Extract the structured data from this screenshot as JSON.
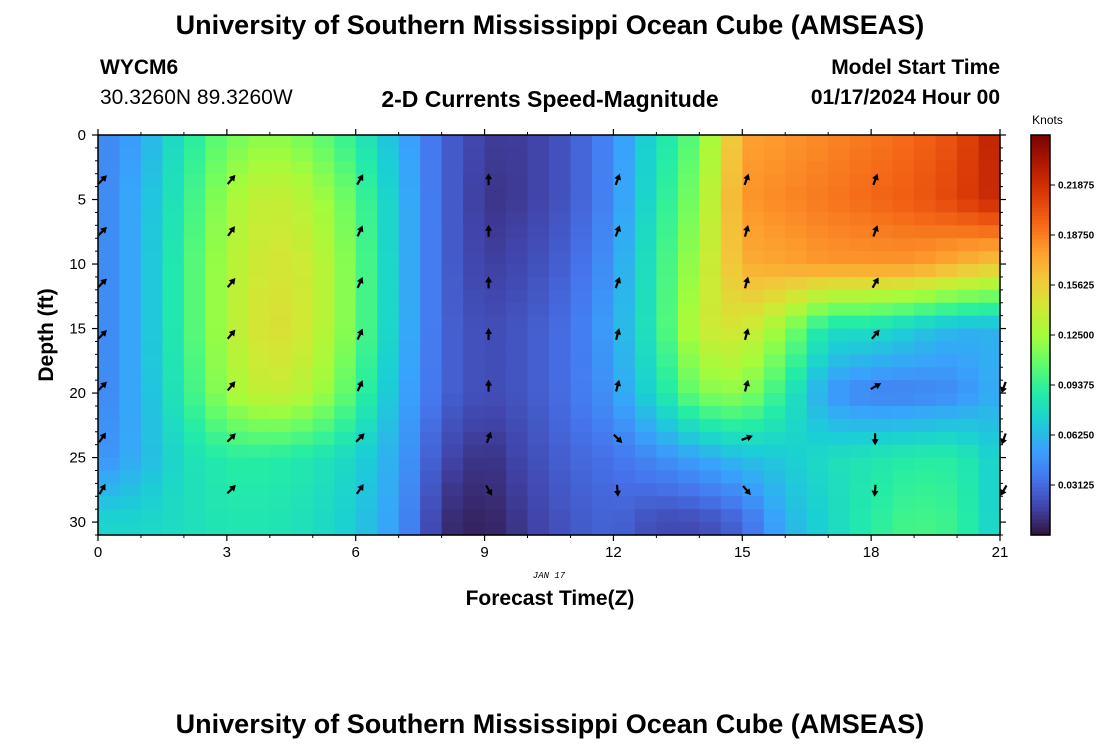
{
  "header": {
    "title": "University of Southern Mississippi Ocean Cube (AMSEAS)",
    "station_id": "WYCM6",
    "station_coords": "30.3260N  89.3260W",
    "chart_title": "2-D Currents Speed-Magnitude",
    "model_start_label": "Model Start Time",
    "model_start_value": "01/17/2024 Hour 00"
  },
  "footer": {
    "title": "University of Southern Mississippi Ocean Cube (AMSEAS)"
  },
  "chart_data": {
    "type": "heatmap",
    "title": "2-D Currents Speed-Magnitude",
    "xlabel": "Forecast Time(Z)",
    "ylabel": "Depth (ft)",
    "date_label": "JAN 17",
    "x_ticks": [
      "0",
      "3",
      "6",
      "9",
      "12",
      "15",
      "18",
      "21"
    ],
    "x_range": [
      0,
      21
    ],
    "y_ticks": [
      "0",
      "5",
      "10",
      "15",
      "20",
      "25",
      "30"
    ],
    "y_range": [
      0,
      31
    ],
    "colorbar": {
      "label": "Knots",
      "range": [
        0,
        0.25
      ],
      "ticks": [
        "0.03125",
        "0.06250",
        "0.09375",
        "0.12500",
        "0.15625",
        "0.18750",
        "0.21875"
      ],
      "tick_values": [
        0.03125,
        0.0625,
        0.09375,
        0.125,
        0.15625,
        0.1875,
        0.21875
      ]
    },
    "hours": [
      0,
      1,
      2,
      3,
      4,
      5,
      6,
      7,
      8,
      9,
      10,
      11,
      12,
      13,
      14,
      15,
      16,
      17,
      18,
      19,
      20,
      21
    ],
    "depths": [
      0,
      5,
      10,
      15,
      20,
      25,
      30
    ],
    "speed_knots": [
      [
        0.04,
        0.055,
        0.085,
        0.11,
        0.12,
        0.11,
        0.09,
        0.06,
        0.03,
        0.015,
        0.015,
        0.025,
        0.045,
        0.08,
        0.11,
        0.175,
        0.18,
        0.185,
        0.19,
        0.195,
        0.205,
        0.23
      ],
      [
        0.04,
        0.06,
        0.09,
        0.125,
        0.14,
        0.13,
        0.105,
        0.065,
        0.03,
        0.012,
        0.015,
        0.025,
        0.045,
        0.085,
        0.12,
        0.18,
        0.185,
        0.19,
        0.195,
        0.2,
        0.21,
        0.225
      ],
      [
        0.04,
        0.06,
        0.095,
        0.13,
        0.145,
        0.14,
        0.11,
        0.065,
        0.03,
        0.015,
        0.02,
        0.03,
        0.05,
        0.09,
        0.13,
        0.17,
        0.175,
        0.18,
        0.18,
        0.18,
        0.17,
        0.16
      ],
      [
        0.04,
        0.06,
        0.095,
        0.13,
        0.15,
        0.14,
        0.11,
        0.065,
        0.03,
        0.02,
        0.025,
        0.035,
        0.055,
        0.09,
        0.14,
        0.145,
        0.12,
        0.08,
        0.08,
        0.07,
        0.06,
        0.06
      ],
      [
        0.04,
        0.06,
        0.09,
        0.125,
        0.14,
        0.13,
        0.1,
        0.06,
        0.03,
        0.02,
        0.025,
        0.035,
        0.05,
        0.08,
        0.115,
        0.12,
        0.09,
        0.05,
        0.04,
        0.04,
        0.045,
        0.06
      ],
      [
        0.045,
        0.06,
        0.08,
        0.09,
        0.09,
        0.085,
        0.075,
        0.055,
        0.02,
        0.01,
        0.02,
        0.03,
        0.035,
        0.045,
        0.055,
        0.065,
        0.07,
        0.08,
        0.085,
        0.09,
        0.09,
        0.07
      ],
      [
        0.075,
        0.075,
        0.08,
        0.085,
        0.085,
        0.08,
        0.07,
        0.05,
        0.01,
        0.005,
        0.015,
        0.025,
        0.03,
        0.02,
        0.02,
        0.03,
        0.06,
        0.075,
        0.09,
        0.1,
        0.095,
        0.07
      ]
    ],
    "arrow_times": [
      0,
      3,
      6,
      9,
      12,
      15,
      18,
      21
    ],
    "arrow_depths": [
      3.5,
      7.5,
      11.5,
      15.5,
      19.5,
      23.5,
      27.5
    ],
    "arrow_directions_deg": [
      [
        45,
        40,
        30,
        0,
        20,
        20,
        20,
        null
      ],
      [
        45,
        35,
        25,
        0,
        20,
        15,
        20,
        null
      ],
      [
        45,
        40,
        25,
        0,
        20,
        15,
        30,
        null
      ],
      [
        45,
        40,
        25,
        0,
        15,
        15,
        40,
        null
      ],
      [
        45,
        40,
        25,
        0,
        15,
        15,
        60,
        200
      ],
      [
        35,
        45,
        45,
        20,
        135,
        70,
        180,
        200
      ],
      [
        30,
        45,
        35,
        150,
        175,
        140,
        185,
        210
      ]
    ]
  },
  "colors": {
    "colormap": [
      "#30123b",
      "#4145ab",
      "#4675ed",
      "#39a2fc",
      "#1bcfd4",
      "#24eca6",
      "#61fc6c",
      "#a4fc3b",
      "#d1e834",
      "#f3c63a",
      "#fe9b2d",
      "#f36315",
      "#d93806",
      "#b11901",
      "#7a0402"
    ],
    "frame": "#000000",
    "arrow": "#000000"
  }
}
